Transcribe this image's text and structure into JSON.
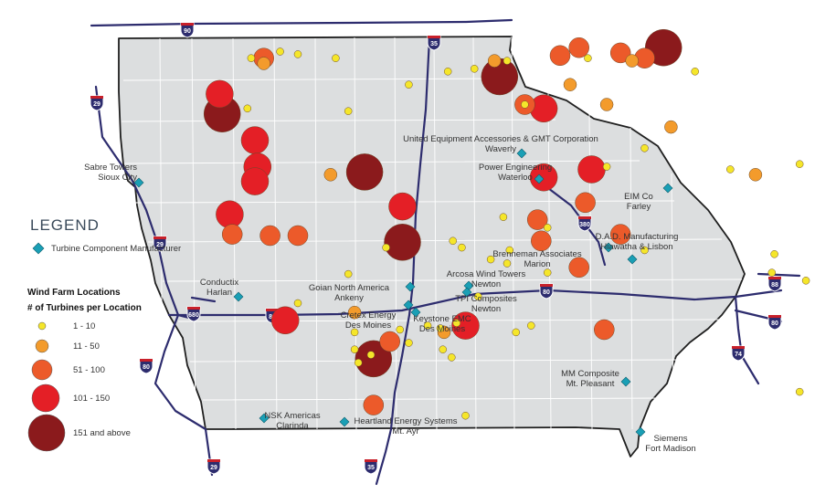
{
  "legend": {
    "title": "LEGEND",
    "manufacturer_label": "Turbine Component Manufacturer",
    "wind_title": "Wind Farm Locations",
    "wind_subtitle": "# of Turbines per Location",
    "classes": [
      {
        "label": "1 - 10",
        "color": "#f5e62a"
      },
      {
        "label": "11 - 50",
        "color": "#f39b2c"
      },
      {
        "label": "51 - 100",
        "color": "#ec5a2a"
      },
      {
        "label": "101 - 150",
        "color": "#e41f26"
      },
      {
        "label": "151 and above",
        "color": "#8b1a1c"
      }
    ]
  },
  "interstates": [
    "90",
    "35",
    "29",
    "29",
    "380",
    "80",
    "88",
    "80",
    "74",
    "680",
    "80",
    "35",
    "29",
    "80"
  ],
  "manufacturers": [
    {
      "name": "Sabre Towers",
      "city": "Sioux City"
    },
    {
      "name": "United Equipment Accessories & GMT Corporation",
      "city": "Waverly"
    },
    {
      "name": "Power Engineering",
      "city": "Waterloo"
    },
    {
      "name": "EIM Co",
      "city": "Farley"
    },
    {
      "name": "D.A.D. Manufacturing",
      "city": "Hiawatha & Lisbon"
    },
    {
      "name": "Brenneman Associates",
      "city": "Marion"
    },
    {
      "name": "Arcosa Wind Towers",
      "city": "Newton"
    },
    {
      "name": "TPI Composites",
      "city": "Newton"
    },
    {
      "name": "Goian North America",
      "city": "Ankeny"
    },
    {
      "name": "Conductix",
      "city": "Harlan"
    },
    {
      "name": "Cretex Energy",
      "city": "Des Moines"
    },
    {
      "name": "Keystone EMC",
      "city": "Des Moines"
    },
    {
      "name": "MM Composite",
      "city": "Mt. Pleasant"
    },
    {
      "name": "NSK Americas",
      "city": "Clarinda"
    },
    {
      "name": "Heartland Energy Systems",
      "city": "Mt. Ayr"
    },
    {
      "name": "Siemens",
      "city": "Fort Madison"
    }
  ],
  "wind_farms": [
    {
      "c": 1,
      "lon": -95.55,
      "lat": 43.4
    },
    {
      "c": 1,
      "lon": -95.32,
      "lat": 43.45
    },
    {
      "c": 1,
      "lon": -95.18,
      "lat": 43.43
    },
    {
      "c": 1,
      "lon": -94.88,
      "lat": 43.4
    },
    {
      "c": 1,
      "lon": -94.3,
      "lat": 43.2
    },
    {
      "c": 1,
      "lon": -93.99,
      "lat": 43.3
    },
    {
      "c": 1,
      "lon": -93.78,
      "lat": 43.32
    },
    {
      "c": 1,
      "lon": -93.52,
      "lat": 43.38
    },
    {
      "c": 1,
      "lon": -93.38,
      "lat": 43.05
    },
    {
      "c": 1,
      "lon": -92.88,
      "lat": 43.4
    },
    {
      "c": 1,
      "lon": -92.03,
      "lat": 43.3
    },
    {
      "c": 1,
      "lon": -94.78,
      "lat": 43.0
    },
    {
      "c": 1,
      "lon": -95.58,
      "lat": 43.02
    },
    {
      "c": 1,
      "lon": -93.2,
      "lat": 42.12
    },
    {
      "c": 1,
      "lon": -92.73,
      "lat": 42.58
    },
    {
      "c": 1,
      "lon": -92.43,
      "lat": 42.72
    },
    {
      "c": 1,
      "lon": -91.75,
      "lat": 42.56
    },
    {
      "c": 1,
      "lon": -91.2,
      "lat": 42.6
    },
    {
      "c": 1,
      "lon": -92.43,
      "lat": 41.95
    },
    {
      "c": 1,
      "lon": -91.4,
      "lat": 41.92
    },
    {
      "c": 1,
      "lon": -91.42,
      "lat": 41.78
    },
    {
      "c": 1,
      "lon": -91.15,
      "lat": 41.72
    },
    {
      "c": 1,
      "lon": -94.48,
      "lat": 41.97
    },
    {
      "c": 1,
      "lon": -94.78,
      "lat": 41.77
    },
    {
      "c": 1,
      "lon": -93.95,
      "lat": 42.02
    },
    {
      "c": 1,
      "lon": -93.88,
      "lat": 41.97
    },
    {
      "c": 1,
      "lon": -93.5,
      "lat": 41.95
    },
    {
      "c": 1,
      "lon": -93.65,
      "lat": 41.88
    },
    {
      "c": 1,
      "lon": -93.52,
      "lat": 41.85
    },
    {
      "c": 1,
      "lon": -93.2,
      "lat": 41.78
    },
    {
      "c": 1,
      "lon": -93.55,
      "lat": 42.2
    },
    {
      "c": 1,
      "lon": -93.75,
      "lat": 41.6
    },
    {
      "c": 1,
      "lon": -94.15,
      "lat": 41.38
    },
    {
      "c": 1,
      "lon": -94.05,
      "lat": 41.36
    },
    {
      "c": 1,
      "lon": -93.92,
      "lat": 41.4
    },
    {
      "c": 1,
      "lon": -94.37,
      "lat": 41.35
    },
    {
      "c": 1,
      "lon": -94.3,
      "lat": 41.25
    },
    {
      "c": 1,
      "lon": -94.03,
      "lat": 41.2
    },
    {
      "c": 1,
      "lon": -93.96,
      "lat": 41.14
    },
    {
      "c": 1,
      "lon": -94.6,
      "lat": 41.16
    },
    {
      "c": 1,
      "lon": -94.7,
      "lat": 41.1
    },
    {
      "c": 1,
      "lon": -94.73,
      "lat": 41.2
    },
    {
      "c": 1,
      "lon": -94.73,
      "lat": 41.33
    },
    {
      "c": 1,
      "lon": -95.18,
      "lat": 41.55
    },
    {
      "c": 1,
      "lon": -93.85,
      "lat": 40.7
    },
    {
      "c": 1,
      "lon": -91.2,
      "lat": 40.88
    },
    {
      "c": 1,
      "lon": -93.45,
      "lat": 41.33
    },
    {
      "c": 1,
      "lon": -93.33,
      "lat": 41.38
    },
    {
      "c": 2,
      "lon": -95.45,
      "lat": 43.36
    },
    {
      "c": 2,
      "lon": -94.92,
      "lat": 42.52
    },
    {
      "c": 2,
      "lon": -93.62,
      "lat": 43.38
    },
    {
      "c": 2,
      "lon": -93.02,
      "lat": 43.2
    },
    {
      "c": 2,
      "lon": -92.53,
      "lat": 43.38
    },
    {
      "c": 2,
      "lon": -92.73,
      "lat": 43.05
    },
    {
      "c": 2,
      "lon": -92.22,
      "lat": 42.88
    },
    {
      "c": 2,
      "lon": -91.55,
      "lat": 42.52
    },
    {
      "c": 2,
      "lon": -94.73,
      "lat": 41.48
    },
    {
      "c": 2,
      "lon": -94.02,
      "lat": 41.33
    },
    {
      "c": 3,
      "lon": -95.45,
      "lat": 43.4
    },
    {
      "c": 3,
      "lon": -93.1,
      "lat": 43.42
    },
    {
      "c": 3,
      "lon": -92.95,
      "lat": 43.48
    },
    {
      "c": 3,
      "lon": -92.62,
      "lat": 43.44
    },
    {
      "c": 3,
      "lon": -92.43,
      "lat": 43.4
    },
    {
      "c": 3,
      "lon": -93.38,
      "lat": 43.05
    },
    {
      "c": 3,
      "lon": -95.7,
      "lat": 42.07
    },
    {
      "c": 3,
      "lon": -95.4,
      "lat": 42.06
    },
    {
      "c": 3,
      "lon": -95.18,
      "lat": 42.06
    },
    {
      "c": 3,
      "lon": -93.28,
      "lat": 42.18
    },
    {
      "c": 3,
      "lon": -93.25,
      "lat": 42.02
    },
    {
      "c": 3,
      "lon": -92.9,
      "lat": 42.31
    },
    {
      "c": 3,
      "lon": -92.62,
      "lat": 42.07
    },
    {
      "c": 3,
      "lon": -92.95,
      "lat": 41.82
    },
    {
      "c": 3,
      "lon": -94.45,
      "lat": 41.26
    },
    {
      "c": 3,
      "lon": -94.58,
      "lat": 40.78
    },
    {
      "c": 3,
      "lon": -92.75,
      "lat": 41.35
    },
    {
      "c": 4,
      "lon": -95.8,
      "lat": 43.13
    },
    {
      "c": 4,
      "lon": -95.52,
      "lat": 42.78
    },
    {
      "c": 4,
      "lon": -95.5,
      "lat": 42.58
    },
    {
      "c": 4,
      "lon": -95.52,
      "lat": 42.47
    },
    {
      "c": 4,
      "lon": -95.72,
      "lat": 42.22
    },
    {
      "c": 4,
      "lon": -93.23,
      "lat": 43.02
    },
    {
      "c": 4,
      "lon": -93.23,
      "lat": 42.5
    },
    {
      "c": 4,
      "lon": -92.85,
      "lat": 42.56
    },
    {
      "c": 4,
      "lon": -94.35,
      "lat": 42.28
    },
    {
      "c": 4,
      "lon": -95.28,
      "lat": 41.42
    },
    {
      "c": 4,
      "lon": -93.85,
      "lat": 41.38
    },
    {
      "c": 5,
      "lon": -95.78,
      "lat": 42.98
    },
    {
      "c": 5,
      "lon": -93.58,
      "lat": 43.26
    },
    {
      "c": 5,
      "lon": -92.28,
      "lat": 43.48
    },
    {
      "c": 5,
      "lon": -94.65,
      "lat": 42.54
    },
    {
      "c": 5,
      "lon": -94.35,
      "lat": 42.01
    },
    {
      "c": 5,
      "lon": -94.58,
      "lat": 41.13
    }
  ]
}
